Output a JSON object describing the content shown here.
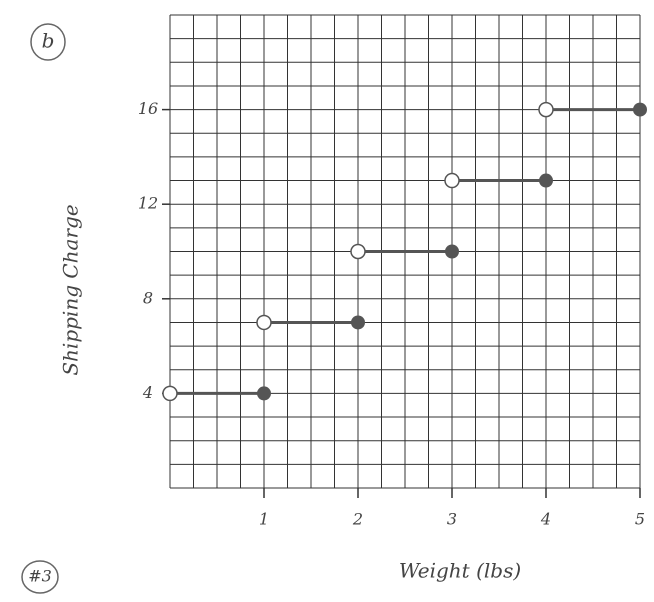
{
  "chart_data": {
    "type": "step",
    "label": "b",
    "annotation": "#3",
    "x_label": "Weight (lbs)",
    "y_label": "Shipping Charge",
    "x_start": [
      0,
      1,
      2,
      3,
      4
    ],
    "x_end": [
      1,
      2,
      3,
      4,
      5
    ],
    "values": [
      4,
      7,
      10,
      13,
      16
    ],
    "color": "#555555",
    "xlim": [
      0,
      5
    ],
    "ylim": [
      0,
      20
    ],
    "xticks": [
      1,
      2,
      3,
      4,
      5
    ],
    "yticks": [
      4,
      8,
      12,
      16
    ],
    "grid": true
  }
}
